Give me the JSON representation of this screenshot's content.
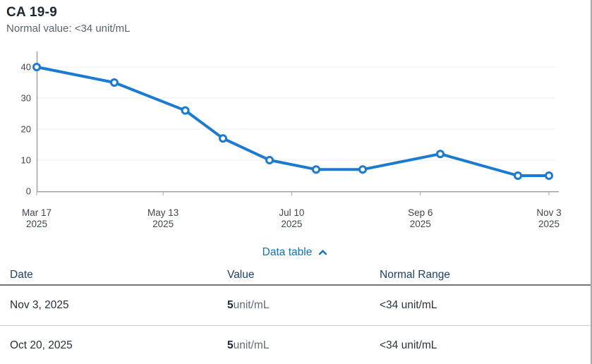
{
  "header": {
    "title": "CA 19-9",
    "subtitle": "Normal value: <34 unit/mL"
  },
  "chart_data": {
    "type": "line",
    "title": "CA 19-9",
    "series": [
      {
        "name": "CA 19-9",
        "unit": "unit/mL",
        "points": [
          {
            "date": "2025-03-17",
            "value": 40
          },
          {
            "date": "2025-04-21",
            "value": 35
          },
          {
            "date": "2025-05-23",
            "value": 26
          },
          {
            "date": "2025-06-09",
            "value": 17
          },
          {
            "date": "2025-06-30",
            "value": 10
          },
          {
            "date": "2025-07-21",
            "value": 7
          },
          {
            "date": "2025-08-11",
            "value": 7
          },
          {
            "date": "2025-09-15",
            "value": 12
          },
          {
            "date": "2025-10-20",
            "value": 5
          },
          {
            "date": "2025-11-03",
            "value": 5
          }
        ]
      }
    ],
    "x_ticks": [
      {
        "date": "2025-03-17",
        "label": "Mar 17",
        "year": "2025"
      },
      {
        "date": "2025-05-13",
        "label": "May 13",
        "year": "2025"
      },
      {
        "date": "2025-07-10",
        "label": "Jul 10",
        "year": "2025"
      },
      {
        "date": "2025-09-06",
        "label": "Sep 6",
        "year": "2025"
      },
      {
        "date": "2025-11-03",
        "label": "Nov 3",
        "year": "2025"
      }
    ],
    "y_ticks": [
      0,
      10,
      20,
      30,
      40
    ],
    "ylim": [
      0,
      44
    ],
    "grid": true,
    "legend": "none",
    "normal_range": "<34 unit/mL",
    "colors": {
      "line": "#1b7ad1",
      "marker_fill": "#ffffff",
      "axis": "#9da2a6",
      "gridline": "#ebebeb",
      "tick_text": "#3f474e"
    }
  },
  "data_table": {
    "toggle_label": "Data table",
    "toggle_icon": "chevron-up-icon",
    "columns": [
      "Date",
      "Value",
      "Normal Range"
    ],
    "rows": [
      {
        "date": "Nov 3, 2025",
        "value": "5",
        "unit": "unit/mL",
        "normal_range": "<34 unit/mL"
      },
      {
        "date": "Oct 20, 2025",
        "value": "5",
        "unit": "unit/mL",
        "normal_range": "<34 unit/mL"
      }
    ]
  }
}
